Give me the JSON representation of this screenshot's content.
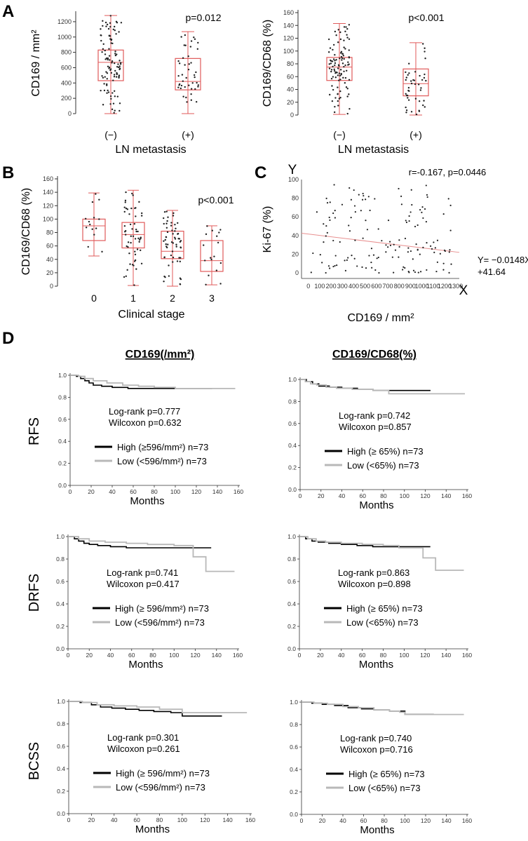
{
  "panels": {
    "A": {
      "letter": "A"
    },
    "B": {
      "letter": "B"
    },
    "C": {
      "letter": "C"
    },
    "D": {
      "letter": "D",
      "col1_title": "CD169(/mm²)",
      "col2_title": "CD169/CD68(%)"
    }
  },
  "colors": {
    "box": "#e05a5a",
    "km_high": "#000000",
    "km_low": "#b8b8b8",
    "axis": "#333333",
    "regression": "#e89090"
  },
  "chart_data": [
    {
      "id": "A1",
      "type": "box",
      "ylabel": "CD169 / mm²",
      "xlabel": "LN metastasis",
      "categories": [
        "(−)",
        "(+)"
      ],
      "yticks": [
        0,
        200,
        400,
        600,
        800,
        1000,
        1200
      ],
      "ylim": [
        0,
        1300
      ],
      "p_text": "p=0.012",
      "boxes": [
        {
          "min": 0,
          "q1": 430,
          "median": 670,
          "q3": 830,
          "max": 1280,
          "n": 102,
          "spread": 360
        },
        {
          "min": 0,
          "q1": 310,
          "median": 420,
          "q3": 720,
          "max": 1070,
          "n": 44,
          "spread": 360
        }
      ]
    },
    {
      "id": "A2",
      "type": "box",
      "ylabel": "CD169/CD68 (%)",
      "xlabel": "LN metastasis",
      "categories": [
        "(−)",
        "(+)"
      ],
      "yticks": [
        0,
        20,
        40,
        60,
        80,
        100,
        120,
        140,
        160
      ],
      "ylim": [
        0,
        160
      ],
      "p_text": "p<0.001",
      "boxes": [
        {
          "min": 1,
          "q1": 54,
          "median": 75,
          "q3": 90,
          "max": 143,
          "n": 102,
          "spread": 40
        },
        {
          "min": 0,
          "q1": 30,
          "median": 49,
          "q3": 72,
          "max": 113,
          "n": 44,
          "spread": 40
        }
      ]
    },
    {
      "id": "B",
      "type": "box",
      "ylabel": "CD169/CD68 (%)",
      "xlabel": "Clinical stage",
      "categories": [
        "0",
        "1",
        "2",
        "3"
      ],
      "yticks": [
        0,
        20,
        40,
        60,
        80,
        100,
        120,
        140,
        160
      ],
      "ylim": [
        0,
        160
      ],
      "p_text": "p<0.001",
      "boxes": [
        {
          "min": 45,
          "q1": 68,
          "median": 90,
          "q3": 100,
          "max": 139,
          "n": 14,
          "spread": 30
        },
        {
          "min": 1,
          "q1": 57,
          "median": 77,
          "q3": 95,
          "max": 143,
          "n": 55,
          "spread": 40
        },
        {
          "min": 0,
          "q1": 41,
          "median": 52,
          "q3": 82,
          "max": 113,
          "n": 60,
          "spread": 40
        },
        {
          "min": 2,
          "q1": 22,
          "median": 38,
          "q3": 68,
          "max": 90,
          "n": 17,
          "spread": 35
        }
      ]
    },
    {
      "id": "C",
      "type": "scatter",
      "xlabel": "CD169 / mm²",
      "ylabel": "Ki-67 (%)",
      "xticks": [
        0,
        100,
        200,
        300,
        400,
        500,
        600,
        700,
        800,
        900,
        1000,
        1100,
        1200,
        1300
      ],
      "xlim": [
        -60,
        1330
      ],
      "yticks": [
        0,
        20,
        40,
        60,
        80,
        100
      ],
      "ylim": [
        -6,
        100
      ],
      "stats_text": "r=-0.167, p=0.0446",
      "y_axis_letter": "Y",
      "x_axis_letter": "X",
      "eq_line1": "Y= −0.0148X",
      "eq_line2": "+41.64",
      "regression": {
        "slope": -0.0148,
        "intercept": 41.64,
        "x_from": -60,
        "x_to": 1330
      },
      "n": 146
    },
    {
      "id": "D-RFS-1",
      "type": "line",
      "row_label": "RFS",
      "xlabel": "Months",
      "xticks": [
        0,
        20,
        40,
        60,
        80,
        100,
        120,
        140,
        160
      ],
      "xlim": [
        0,
        160
      ],
      "yticks": [
        "0.0",
        "0.2",
        "0.4",
        "0.6",
        "0.8",
        "1.0"
      ],
      "ylim": [
        0,
        1
      ],
      "stat1": "Log-rank p=0.777",
      "stat2": "Wilcoxon p=0.632",
      "series": [
        {
          "name": "High (≥596/mm²) n=73",
          "x": [
            0,
            6,
            10,
            14,
            18,
            22,
            30,
            40,
            55,
            70,
            135
          ],
          "y": [
            1.0,
            0.99,
            0.97,
            0.95,
            0.93,
            0.91,
            0.9,
            0.89,
            0.88,
            0.88,
            0.88
          ]
        },
        {
          "name": "Low (<596/mm²) n=73",
          "x": [
            0,
            8,
            14,
            22,
            35,
            50,
            65,
            80,
            100,
            157
          ],
          "y": [
            1.0,
            0.99,
            0.97,
            0.95,
            0.93,
            0.91,
            0.9,
            0.89,
            0.88,
            0.88
          ]
        }
      ]
    },
    {
      "id": "D-RFS-2",
      "type": "line",
      "row_label": "",
      "xlabel": "Months",
      "xticks": [
        0,
        20,
        40,
        60,
        80,
        100,
        120,
        140,
        160
      ],
      "xlim": [
        0,
        160
      ],
      "yticks": [
        "0.0",
        "0.2",
        "0.4",
        "0.6",
        "0.8",
        "1.0"
      ],
      "ylim": [
        0,
        1
      ],
      "stat1": "Log-rank p=0.742",
      "stat2": "Wilcoxon p=0.857",
      "series": [
        {
          "name": "High (≥ 65%) n=73",
          "x": [
            0,
            6,
            12,
            18,
            28,
            40,
            55,
            70,
            85,
            125
          ],
          "y": [
            1.0,
            0.98,
            0.96,
            0.94,
            0.93,
            0.92,
            0.91,
            0.9,
            0.9,
            0.9
          ]
        },
        {
          "name": "Low (<65%) n=73",
          "x": [
            0,
            5,
            10,
            16,
            25,
            35,
            50,
            70,
            85,
            158
          ],
          "y": [
            1.0,
            0.98,
            0.96,
            0.95,
            0.93,
            0.92,
            0.91,
            0.9,
            0.87,
            0.87
          ]
        }
      ]
    },
    {
      "id": "D-DRFS-1",
      "type": "line",
      "row_label": "DRFS",
      "xlabel": "Months",
      "xticks": [
        0,
        20,
        40,
        60,
        80,
        100,
        120,
        140,
        160
      ],
      "xlim": [
        0,
        160
      ],
      "yticks": [
        "0.0",
        "0.2",
        "0.4",
        "0.6",
        "0.8",
        "1.0"
      ],
      "ylim": [
        0,
        1
      ],
      "stat1": "Log-rank p=0.741",
      "stat2": "Wilcoxon p=0.417",
      "series": [
        {
          "name": "High (≥ 596/mm²) n=73",
          "x": [
            0,
            6,
            10,
            15,
            20,
            28,
            40,
            55,
            70,
            85,
            135
          ],
          "y": [
            1.0,
            0.98,
            0.96,
            0.94,
            0.93,
            0.92,
            0.91,
            0.9,
            0.9,
            0.9,
            0.9
          ]
        },
        {
          "name": "Low (<596/mm²) n=73",
          "x": [
            0,
            10,
            20,
            35,
            55,
            75,
            100,
            118,
            130,
            157
          ],
          "y": [
            1.0,
            0.98,
            0.96,
            0.95,
            0.94,
            0.93,
            0.92,
            0.82,
            0.69,
            0.69
          ]
        }
      ]
    },
    {
      "id": "D-DRFS-2",
      "type": "line",
      "row_label": "",
      "xlabel": "Months",
      "xticks": [
        0,
        20,
        40,
        60,
        80,
        100,
        120,
        140,
        160
      ],
      "xlim": [
        0,
        160
      ],
      "yticks": [
        "0.0",
        "0.2",
        "0.4",
        "0.6",
        "0.8",
        "1.0"
      ],
      "ylim": [
        0,
        1
      ],
      "stat1": "Log-rank p=0.863",
      "stat2": "Wilcoxon p=0.898",
      "series": [
        {
          "name": "High (≥ 65%) n=73",
          "x": [
            0,
            6,
            12,
            18,
            28,
            40,
            55,
            70,
            90,
            125
          ],
          "y": [
            1.0,
            0.98,
            0.96,
            0.95,
            0.94,
            0.93,
            0.92,
            0.91,
            0.91,
            0.91
          ]
        },
        {
          "name": "Low (<65%) n=73",
          "x": [
            0,
            8,
            16,
            25,
            40,
            60,
            80,
            95,
            118,
            130,
            157
          ],
          "y": [
            1.0,
            0.98,
            0.96,
            0.95,
            0.94,
            0.93,
            0.92,
            0.9,
            0.81,
            0.7,
            0.7
          ]
        }
      ]
    },
    {
      "id": "D-BCSS-1",
      "type": "line",
      "row_label": "BCSS",
      "xlabel": "Months",
      "xticks": [
        0,
        20,
        40,
        60,
        80,
        100,
        120,
        140,
        160
      ],
      "xlim": [
        0,
        160
      ],
      "yticks": [
        "0.0",
        "0.2",
        "0.4",
        "0.6",
        "0.8",
        "1.0"
      ],
      "ylim": [
        0,
        1
      ],
      "stat1": "Log-rank p=0.301",
      "stat2": "Wilcoxon p=0.261",
      "series": [
        {
          "name": "High (≥ 596/mm²) n=73",
          "x": [
            0,
            10,
            20,
            28,
            38,
            50,
            62,
            75,
            90,
            100,
            135
          ],
          "y": [
            1.0,
            0.99,
            0.97,
            0.95,
            0.94,
            0.93,
            0.92,
            0.91,
            0.9,
            0.87,
            0.87
          ]
        },
        {
          "name": "Low (<596/mm²) n=73",
          "x": [
            0,
            12,
            25,
            40,
            60,
            80,
            100,
            157
          ],
          "y": [
            1.0,
            0.99,
            0.97,
            0.96,
            0.95,
            0.93,
            0.9,
            0.9
          ]
        }
      ]
    },
    {
      "id": "D-BCSS-2",
      "type": "line",
      "row_label": "",
      "xlabel": "Months",
      "xticks": [
        0,
        20,
        40,
        60,
        80,
        100,
        120,
        140,
        160
      ],
      "xlim": [
        0,
        160
      ],
      "yticks": [
        "0.0",
        "0.2",
        "0.4",
        "0.6",
        "0.8",
        "1.0"
      ],
      "ylim": [
        0,
        1
      ],
      "stat1": "Log-rank p=0.740",
      "stat2": "Wilcoxon p=0.716",
      "series": [
        {
          "name": "High (≥ 65%) n=73",
          "x": [
            0,
            10,
            20,
            32,
            45,
            58,
            70,
            85,
            100,
            128
          ],
          "y": [
            1.0,
            0.99,
            0.98,
            0.97,
            0.95,
            0.94,
            0.93,
            0.92,
            0.89,
            0.89
          ]
        },
        {
          "name": "Low (<65%) n=73",
          "x": [
            0,
            12,
            25,
            40,
            55,
            70,
            85,
            95,
            100,
            157
          ],
          "y": [
            1.0,
            0.99,
            0.98,
            0.96,
            0.95,
            0.93,
            0.92,
            0.91,
            0.89,
            0.89
          ]
        }
      ]
    }
  ]
}
